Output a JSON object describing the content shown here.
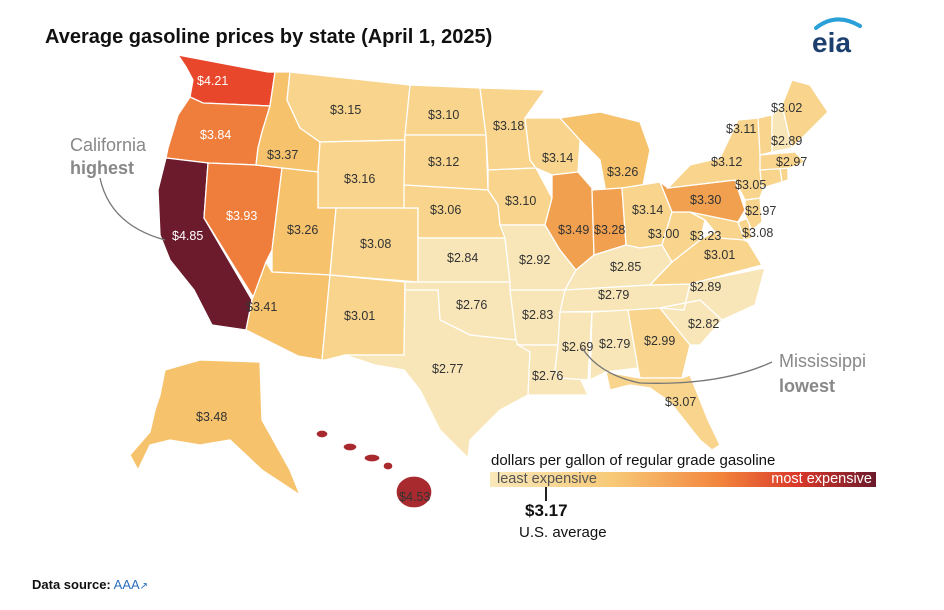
{
  "title": "Average gasoline prices by state (April 1, 2025)",
  "logo_text": "eia",
  "colors": {
    "c1": "#f8e6b8",
    "c2": "#f8d48c",
    "c3": "#f6c26c",
    "c4": "#f0a04e",
    "c5": "#ef7e3d",
    "c6": "#e8472c",
    "c7": "#a82a2e",
    "c8": "#6b1b2c"
  },
  "states": [
    {
      "id": "WA",
      "price": "$4.21",
      "tier": "c6"
    },
    {
      "id": "OR",
      "price": "$3.84",
      "tier": "c5"
    },
    {
      "id": "CA",
      "price": "$4.85",
      "tier": "c8"
    },
    {
      "id": "NV",
      "price": "$3.93",
      "tier": "c5"
    },
    {
      "id": "ID",
      "price": "$3.37",
      "tier": "c3"
    },
    {
      "id": "MT",
      "price": "$3.15",
      "tier": "c2"
    },
    {
      "id": "WY",
      "price": "$3.16",
      "tier": "c2"
    },
    {
      "id": "UT",
      "price": "$3.26",
      "tier": "c3"
    },
    {
      "id": "AZ",
      "price": "$3.41",
      "tier": "c3"
    },
    {
      "id": "CO",
      "price": "$3.08",
      "tier": "c2"
    },
    {
      "id": "NM",
      "price": "$3.01",
      "tier": "c2"
    },
    {
      "id": "ND",
      "price": "$3.10",
      "tier": "c2"
    },
    {
      "id": "SD",
      "price": "$3.12",
      "tier": "c2"
    },
    {
      "id": "NE",
      "price": "$3.06",
      "tier": "c2"
    },
    {
      "id": "KS",
      "price": "$2.84",
      "tier": "c1"
    },
    {
      "id": "OK",
      "price": "$2.76",
      "tier": "c1"
    },
    {
      "id": "TX",
      "price": "$2.77",
      "tier": "c1"
    },
    {
      "id": "MN",
      "price": "$3.18",
      "tier": "c2"
    },
    {
      "id": "IA",
      "price": "$3.10",
      "tier": "c2"
    },
    {
      "id": "MO",
      "price": "$2.92",
      "tier": "c1"
    },
    {
      "id": "AR",
      "price": "$2.83",
      "tier": "c1"
    },
    {
      "id": "LA",
      "price": "$2.76",
      "tier": "c1"
    },
    {
      "id": "WI",
      "price": "$3.14",
      "tier": "c2"
    },
    {
      "id": "IL",
      "price": "$3.49",
      "tier": "c4"
    },
    {
      "id": "MI",
      "price": "$3.26",
      "tier": "c3"
    },
    {
      "id": "IN",
      "price": "$3.28",
      "tier": "c4"
    },
    {
      "id": "OH",
      "price": "$3.14",
      "tier": "c2"
    },
    {
      "id": "KY",
      "price": "$2.85",
      "tier": "c1"
    },
    {
      "id": "TN",
      "price": "$2.79",
      "tier": "c1"
    },
    {
      "id": "MS",
      "price": "$2.69",
      "tier": "c1"
    },
    {
      "id": "AL",
      "price": "$2.79",
      "tier": "c1"
    },
    {
      "id": "GA",
      "price": "$2.99",
      "tier": "c2"
    },
    {
      "id": "FL",
      "price": "$3.07",
      "tier": "c2"
    },
    {
      "id": "SC",
      "price": "$2.82",
      "tier": "c1"
    },
    {
      "id": "NC",
      "price": "$2.89",
      "tier": "c1"
    },
    {
      "id": "VA",
      "price": "$3.01",
      "tier": "c2"
    },
    {
      "id": "WV",
      "price": "$3.00",
      "tier": "c2"
    },
    {
      "id": "PA",
      "price": "$3.30",
      "tier": "c4"
    },
    {
      "id": "MD",
      "price": "$3.23",
      "tier": "c2"
    },
    {
      "id": "DE",
      "price": "$3.08",
      "tier": "c2"
    },
    {
      "id": "NJ",
      "price": "$2.97",
      "tier": "c2"
    },
    {
      "id": "NY",
      "price": "$3.05",
      "tier": "c2"
    },
    {
      "id": "CT",
      "price": "$3.12",
      "tier": "c2"
    },
    {
      "id": "MA",
      "price": "$2.97",
      "tier": "c2"
    },
    {
      "id": "VT",
      "price": "$3.11",
      "tier": "c2"
    },
    {
      "id": "NH",
      "price": "$2.89",
      "tier": "c1"
    },
    {
      "id": "ME",
      "price": "$3.02",
      "tier": "c2"
    },
    {
      "id": "AK",
      "price": "$3.48",
      "tier": "c3"
    },
    {
      "id": "HI",
      "price": "$4.53",
      "tier": "c7"
    }
  ],
  "callouts": {
    "california": {
      "line1": "California",
      "line2": "highest"
    },
    "mississippi": {
      "line1": "Mississippi",
      "line2": "lowest"
    }
  },
  "legend": {
    "caption": "dollars per gallon of regular grade gasoline",
    "low_label": "least expensive",
    "high_label": "most expensive",
    "avg_value": "$3.17",
    "avg_label": "U.S. average"
  },
  "source": {
    "label": "Data source:",
    "link_text": "AAA"
  }
}
